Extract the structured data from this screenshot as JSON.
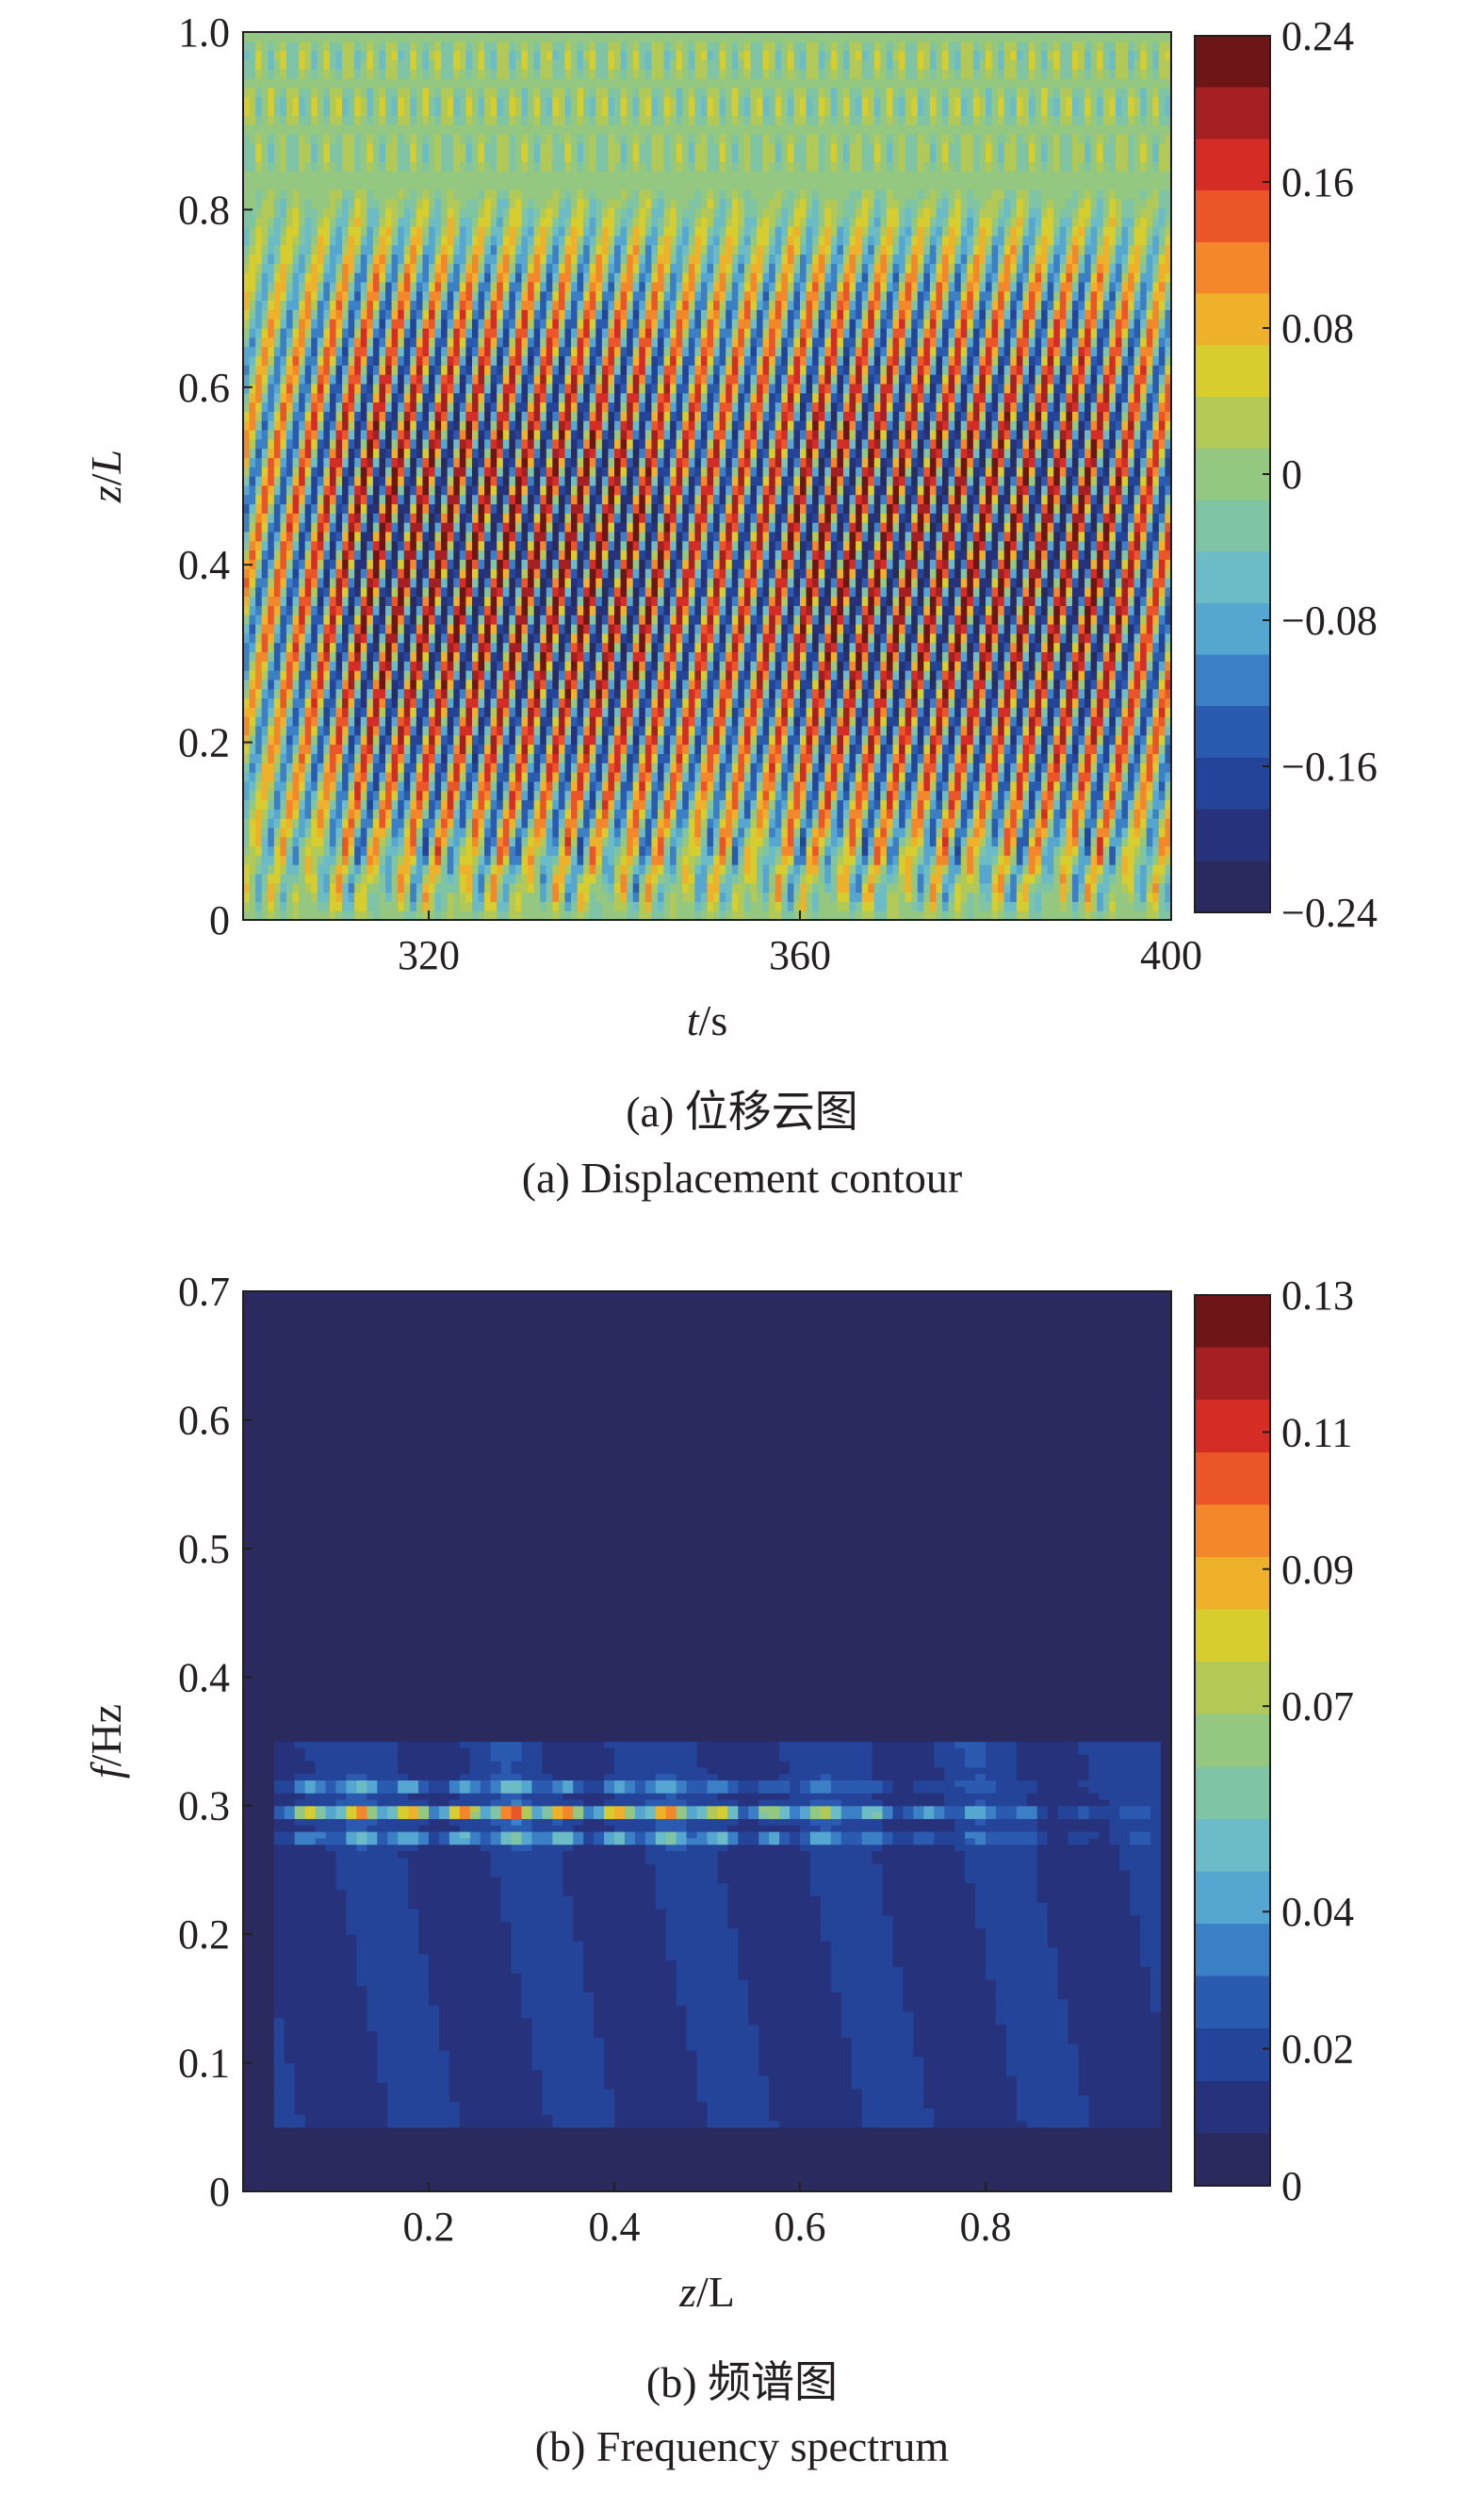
{
  "chart_data": [
    {
      "type": "heatmap",
      "caption_cn": "(a) 位移云图",
      "caption_en": "(a) Displacement contour",
      "x_label": "t/s",
      "y_label": "z/L",
      "xlim": [
        300,
        400
      ],
      "ylim": [
        0,
        1.0
      ],
      "x_ticks": [
        "320",
        "360",
        "400"
      ],
      "x_tick_values": [
        320,
        360,
        400
      ],
      "y_ticks": [
        "0",
        "0.2",
        "0.4",
        "0.6",
        "0.8",
        "1.0"
      ],
      "y_tick_values": [
        0,
        0.2,
        0.4,
        0.6,
        0.8,
        1.0
      ],
      "colorbar_range": [
        -0.24,
        0.24
      ],
      "colorbar_ticks": [
        "0.24",
        "0.16",
        "0.08",
        "0",
        "−0.08",
        "−0.16",
        "−0.24"
      ],
      "colorbar_tick_values": [
        0.24,
        0.16,
        0.08,
        0,
        -0.08,
        -0.16,
        -0.24
      ],
      "description": "travelling-wave displacement pattern: diagonal bands of alternating sign drifting toward higher z/L with time, strongest at mid-span (z/L 0.1–0.7), two wave packets around t≈310–340 s and t≈360–395 s, small-amplitude cellular pattern near z/L≈0.05 and z/L≈0.85–1.0",
      "amplitude_max": 0.24,
      "dominant_frequency_hz": 0.295
    },
    {
      "type": "heatmap",
      "caption_cn": "(b) 频谱图",
      "caption_en": "(b) Frequency spectrum",
      "x_label": "z/L",
      "y_label": "f/Hz",
      "xlim": [
        0,
        1.0
      ],
      "ylim": [
        0,
        0.7
      ],
      "x_ticks": [
        "0.2",
        "0.4",
        "0.6",
        "0.8"
      ],
      "x_tick_values": [
        0.2,
        0.4,
        0.6,
        0.8
      ],
      "y_ticks": [
        "0",
        "0.1",
        "0.2",
        "0.3",
        "0.4",
        "0.5",
        "0.6",
        "0.7"
      ],
      "y_tick_values": [
        0,
        0.1,
        0.2,
        0.3,
        0.4,
        0.5,
        0.6,
        0.7
      ],
      "colorbar_range": [
        0,
        0.13
      ],
      "colorbar_ticks": [
        "0.13",
        "0.11",
        "0.09",
        "0.07",
        "0.04",
        "0.02",
        "0"
      ],
      "colorbar_tick_values": [
        0.13,
        0.11,
        0.09,
        0.07,
        0.04,
        0.02,
        0
      ],
      "spectral_lines": [
        {
          "frequency": 0.295,
          "peak_amplitude": 0.11,
          "peak_z": 0.3
        },
        {
          "frequency": 0.275,
          "peak_amplitude": 0.05,
          "peak_z": 0.35
        },
        {
          "frequency": 0.315,
          "peak_amplitude": 0.04,
          "peak_z": 0.25
        }
      ],
      "broadband_range": [
        0.05,
        0.35
      ],
      "broadband_level": 0.02
    }
  ],
  "colormap": [
    "#2b2a5e",
    "#27327c",
    "#24449a",
    "#2a5bb0",
    "#3b7fc6",
    "#55a6d0",
    "#6bbcc6",
    "#7fc4a4",
    "#94c780",
    "#b2c957",
    "#d7cd2e",
    "#f0b12a",
    "#f3872a",
    "#ec5528",
    "#d62c26",
    "#a61f22",
    "#6e1617"
  ]
}
